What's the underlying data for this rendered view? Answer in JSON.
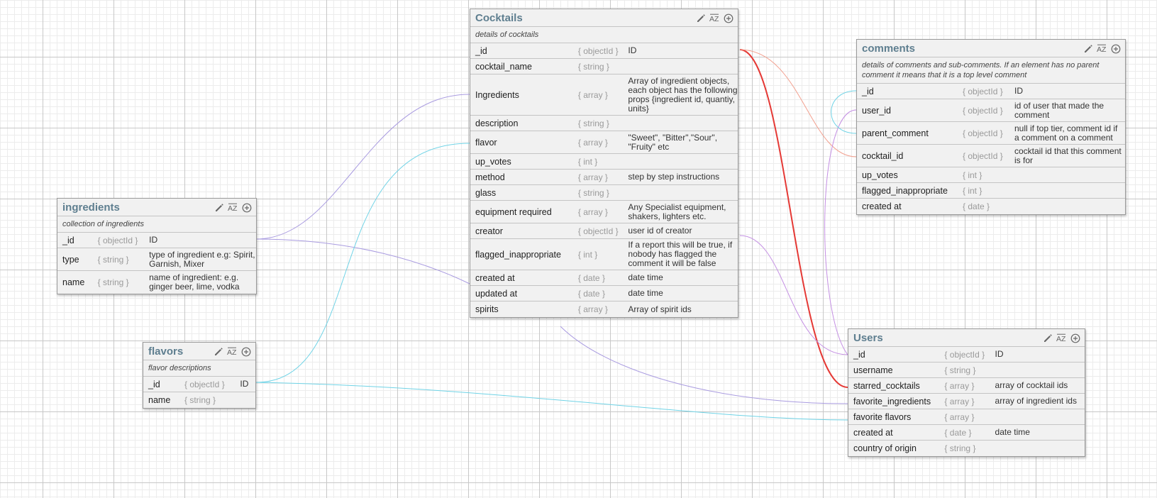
{
  "entities": {
    "cocktails": {
      "title": "Cocktails",
      "description": "details of cocktails",
      "fields": [
        {
          "name": "_id",
          "type": "{ objectId }",
          "note": "ID"
        },
        {
          "name": "cocktail_name",
          "type": "{ string }",
          "note": ""
        },
        {
          "name": "Ingredients",
          "type": "{ array }",
          "note": "Array of ingredient objects, each object has the following props {ingredient id, quantiy, units}"
        },
        {
          "name": "description",
          "type": "{ string }",
          "note": ""
        },
        {
          "name": "flavor",
          "type": "{ array }",
          "note": "\"Sweet\", \"Bitter\",\"Sour\", \"Fruity\" etc"
        },
        {
          "name": "up_votes",
          "type": "{ int }",
          "note": ""
        },
        {
          "name": "method",
          "type": "{ array }",
          "note": "step by step instructions"
        },
        {
          "name": "glass",
          "type": "{ string }",
          "note": ""
        },
        {
          "name": "equipment required",
          "type": "{ array }",
          "note": "Any Specialist equipment, shakers, lighters etc."
        },
        {
          "name": "creator",
          "type": "{ objectId }",
          "note": "user id of creator"
        },
        {
          "name": "flagged_inappropriate",
          "type": "{ int }",
          "note": "If a report this will be true, if nobody has flagged the comment it will be false"
        },
        {
          "name": "created at",
          "type": "{ date }",
          "note": "date time"
        },
        {
          "name": "updated at",
          "type": "{ date }",
          "note": "date time"
        },
        {
          "name": "spirits",
          "type": "{ array }",
          "note": "Array of spirit ids"
        }
      ]
    },
    "comments": {
      "title": "comments",
      "description": "details of comments and sub-comments. If an element has no parent comment it means that it is a top level comment",
      "fields": [
        {
          "name": "_id",
          "type": "{ objectId }",
          "note": "ID"
        },
        {
          "name": "user_id",
          "type": "{ objectId }",
          "note": "id of user that made the comment"
        },
        {
          "name": "parent_comment",
          "type": "{ objectId }",
          "note": "null if top tier, comment id if a comment on a comment"
        },
        {
          "name": "cocktail_id",
          "type": "{ objectId }",
          "note": "cocktail id that this comment is for"
        },
        {
          "name": "up_votes",
          "type": "{ int }",
          "note": ""
        },
        {
          "name": "flagged_inappropriate",
          "type": "{ int }",
          "note": ""
        },
        {
          "name": "created at",
          "type": "{ date }",
          "note": ""
        }
      ]
    },
    "ingredients": {
      "title": "ingredients",
      "description": "collection of ingredients",
      "fields": [
        {
          "name": "_id",
          "type": "{ objectId }",
          "note": "ID"
        },
        {
          "name": "type",
          "type": "{ string }",
          "note": "type of ingredient e.g: Spirit, Garnish, Mixer"
        },
        {
          "name": "name",
          "type": "{ string }",
          "note": "name of ingredient: e.g. ginger beer, lime, vodka"
        }
      ]
    },
    "flavors": {
      "title": "flavors",
      "description": "flavor descriptions",
      "fields": [
        {
          "name": "_id",
          "type": "{ objectId }",
          "note": "ID"
        },
        {
          "name": "name",
          "type": "{ string }",
          "note": ""
        }
      ]
    },
    "users": {
      "title": "Users",
      "description": "",
      "fields": [
        {
          "name": "_id",
          "type": "{ objectId }",
          "note": "ID"
        },
        {
          "name": "username",
          "type": "{ string }",
          "note": ""
        },
        {
          "name": "starred_cocktails",
          "type": "{ array }",
          "note": "array of cocktail ids"
        },
        {
          "name": "favorite_ingredients",
          "type": "{ array }",
          "note": "array of ingredient ids"
        },
        {
          "name": "favorite flavors",
          "type": "{ array }",
          "note": ""
        },
        {
          "name": "created at",
          "type": "{ date }",
          "note": "date time"
        },
        {
          "name": "country of origin",
          "type": "{ string }",
          "note": ""
        }
      ]
    }
  },
  "icons": [
    "pencil-icon",
    "sort-az-icon",
    "add-field-icon"
  ],
  "sort_label": "AZ",
  "colors": {
    "title": "#5e7e8f",
    "link_purple": "#a99be0",
    "link_cyan": "#6fd3e6",
    "link_red": "#e53935",
    "link_salmon": "#f2a08f",
    "link_violet": "#c48fe3"
  }
}
